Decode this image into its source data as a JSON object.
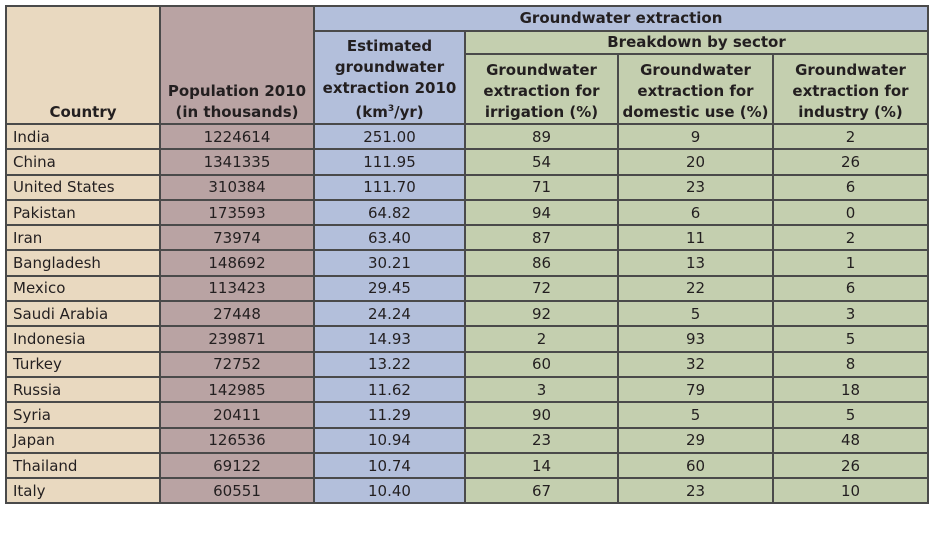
{
  "headers": {
    "country": "Country",
    "population": "Population 2010 (in thousands)",
    "group": "Groundwater extraction",
    "extraction_pre": "Estimated groundwater extraction 2010 (km",
    "extraction_sup": "3",
    "extraction_post": "/yr)",
    "breakdown": "Breakdown by sector",
    "irrigation": "Groundwater extraction for irrigation (%)",
    "domestic": "Groundwater extraction for domestic use (%)",
    "industry": "Groundwater extraction for industry (%)"
  },
  "rows": [
    {
      "country": "India",
      "population": "1224614",
      "extraction": "251.00",
      "irrigation": "89",
      "domestic": "9",
      "industry": "2"
    },
    {
      "country": "China",
      "population": "1341335",
      "extraction": "111.95",
      "irrigation": "54",
      "domestic": "20",
      "industry": "26"
    },
    {
      "country": "United States",
      "population": "310384",
      "extraction": "111.70",
      "irrigation": "71",
      "domestic": "23",
      "industry": "6"
    },
    {
      "country": "Pakistan",
      "population": "173593",
      "extraction": "64.82",
      "irrigation": "94",
      "domestic": "6",
      "industry": "0"
    },
    {
      "country": "Iran",
      "population": "73974",
      "extraction": "63.40",
      "irrigation": "87",
      "domestic": "11",
      "industry": "2"
    },
    {
      "country": "Bangladesh",
      "population": "148692",
      "extraction": "30.21",
      "irrigation": "86",
      "domestic": "13",
      "industry": "1"
    },
    {
      "country": "Mexico",
      "population": "113423",
      "extraction": "29.45",
      "irrigation": "72",
      "domestic": "22",
      "industry": "6"
    },
    {
      "country": "Saudi Arabia",
      "population": "27448",
      "extraction": "24.24",
      "irrigation": "92",
      "domestic": "5",
      "industry": "3"
    },
    {
      "country": "Indonesia",
      "population": "239871",
      "extraction": "14.93",
      "irrigation": "2",
      "domestic": "93",
      "industry": "5"
    },
    {
      "country": "Turkey",
      "population": "72752",
      "extraction": "13.22",
      "irrigation": "60",
      "domestic": "32",
      "industry": "8"
    },
    {
      "country": "Russia",
      "population": "142985",
      "extraction": "11.62",
      "irrigation": "3",
      "domestic": "79",
      "industry": "18"
    },
    {
      "country": "Syria",
      "population": "20411",
      "extraction": "11.29",
      "irrigation": "90",
      "domestic": "5",
      "industry": "5"
    },
    {
      "country": "Japan",
      "population": "126536",
      "extraction": "10.94",
      "irrigation": "23",
      "domestic": "29",
      "industry": "48"
    },
    {
      "country": "Thailand",
      "population": "69122",
      "extraction": "10.74",
      "irrigation": "14",
      "domestic": "60",
      "industry": "26"
    },
    {
      "country": "Italy",
      "population": "60551",
      "extraction": "10.40",
      "irrigation": "67",
      "domestic": "23",
      "industry": "10"
    }
  ],
  "colors": {
    "country": "#e9d9c0",
    "population": "#b9a3a3",
    "extraction": "#b3bfdb",
    "breakdown": "#c4cfaf"
  }
}
